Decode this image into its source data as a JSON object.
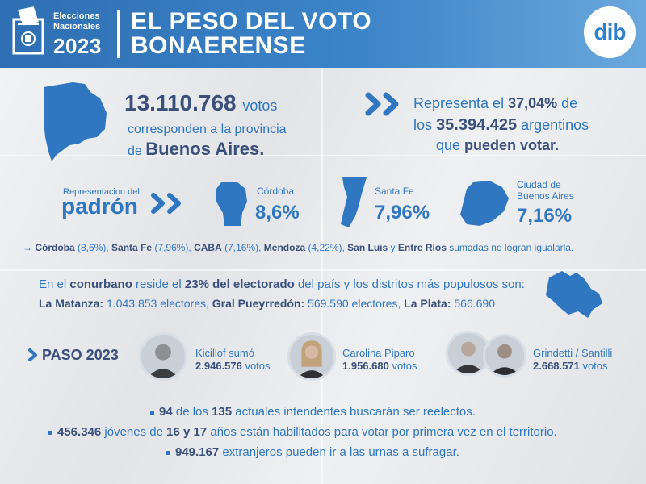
{
  "header": {
    "badge_line1": "Elecciones",
    "badge_line2": "Nacionales",
    "year": "2023",
    "title_line1": "EL PESO DEL VOTO",
    "title_line2": "BONAERENSE",
    "logo": "dib"
  },
  "top": {
    "votes": "13.110.768",
    "votes_word": "votos",
    "line2": "corresponden a la provincia",
    "line3_pre": "de ",
    "province": "Buenos Aires.",
    "rep_pre": "Representa el ",
    "rep_pct": "37,04%",
    "rep_post": " de",
    "los_pre": "los ",
    "total": "35.394.425",
    "los_post": " argentinos",
    "que_pre": "que ",
    "que_bold": "pueden votar."
  },
  "padron": {
    "label_small": "Representacion del",
    "label_big": "padrón",
    "items": [
      {
        "name": "Córdoba",
        "pct": "8,6%"
      },
      {
        "name": "Santa Fe",
        "pct": "7,96%"
      },
      {
        "name_line1": "Ciudad de",
        "name_line2": "Buenos Aires",
        "pct": "7,16%"
      }
    ]
  },
  "sum_line": {
    "arrow": "→",
    "p1": "Córdoba",
    "p1v": " (8,6%), ",
    "p2": "Santa Fe",
    "p2v": " (7,96%), ",
    "p3": "CABA",
    "p3v": " (7,16%), ",
    "p4": "Mendoza",
    "p4v": " (4,22%), ",
    "p5": "San Luis",
    "p5v": " y ",
    "p6": "Entre Ríos",
    "p6v": " sumadas no logran igualarla."
  },
  "conurbano": {
    "l1_a": "En el ",
    "l1_b": "conurbano",
    "l1_c": " reside el ",
    "l1_d": "23% del electorado",
    "l1_e": " del país y los distritos más populosos son:",
    "d1": "La Matanza:",
    "d1v": " 1.043.853 electores, ",
    "d2": "Gral Pueyrredón:",
    "d2v": " 569.590 electores, ",
    "d3": "La Plata:",
    "d3v": " 566.690"
  },
  "paso": {
    "label": "PASO 2023",
    "candidates": [
      {
        "name": "Kicillof sumó",
        "votes": "2.946.576",
        "votes_word": " votos"
      },
      {
        "name": "Carolina Piparo",
        "votes": "1.956.680",
        "votes_word": " votos"
      },
      {
        "name": "Grindetti / Santilli",
        "votes": "2.668.571",
        "votes_word": " votos"
      }
    ]
  },
  "facts": [
    {
      "a": "94",
      "b": " de los ",
      "c": "135",
      "d": " actuales intendentes buscarán ser reelectos."
    },
    {
      "a": "456.346",
      "b": " jóvenes de ",
      "c": "16 y 17",
      "d": " años están habilitados para votar por primera vez en el territorio."
    },
    {
      "a": "949.167",
      "b": " extranjeros pueden ir a las urnas a sufragar.",
      "c": "",
      "d": ""
    }
  ],
  "colors": {
    "primary": "#2f77c0",
    "text": "#3a4f7a",
    "header": "#3b84c8"
  }
}
